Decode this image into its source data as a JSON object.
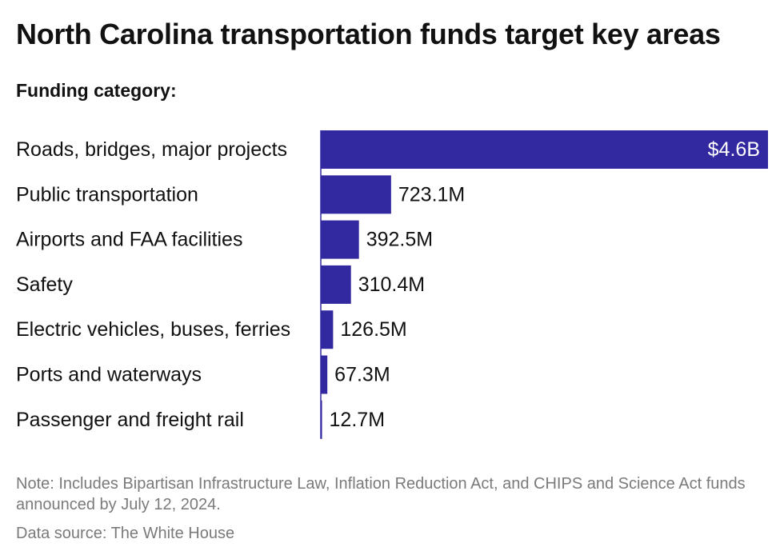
{
  "header": {
    "title": "North Carolina transportation funds target key areas",
    "subtitle": "Funding category:"
  },
  "footer": {
    "note": "Note: Includes Bipartisan Infrastructure Law, Inflation Reduction Act, and CHIPS and Science Act funds announced by July 12, 2024.",
    "source": "Data source: The White House"
  },
  "chart_data": {
    "type": "bar",
    "orientation": "horizontal",
    "title": "North Carolina transportation funds target key areas",
    "subtitle": "Funding category:",
    "categories": [
      "Roads, bridges, major projects",
      "Public transportation",
      "Airports and FAA facilities",
      "Safety",
      "Electric vehicles, buses, ferries",
      "Ports and waterways",
      "Passenger and freight rail"
    ],
    "values": [
      4600,
      723.1,
      392.5,
      310.4,
      126.5,
      67.3,
      12.7
    ],
    "value_labels": [
      "$4.6B",
      "723.1M",
      "392.5M",
      "310.4M",
      "126.5M",
      "67.3M",
      "12.7M"
    ],
    "unit": "millions of dollars",
    "xlim": [
      0,
      4600
    ],
    "grid": false,
    "legend": "none",
    "color": "#3229a0"
  }
}
